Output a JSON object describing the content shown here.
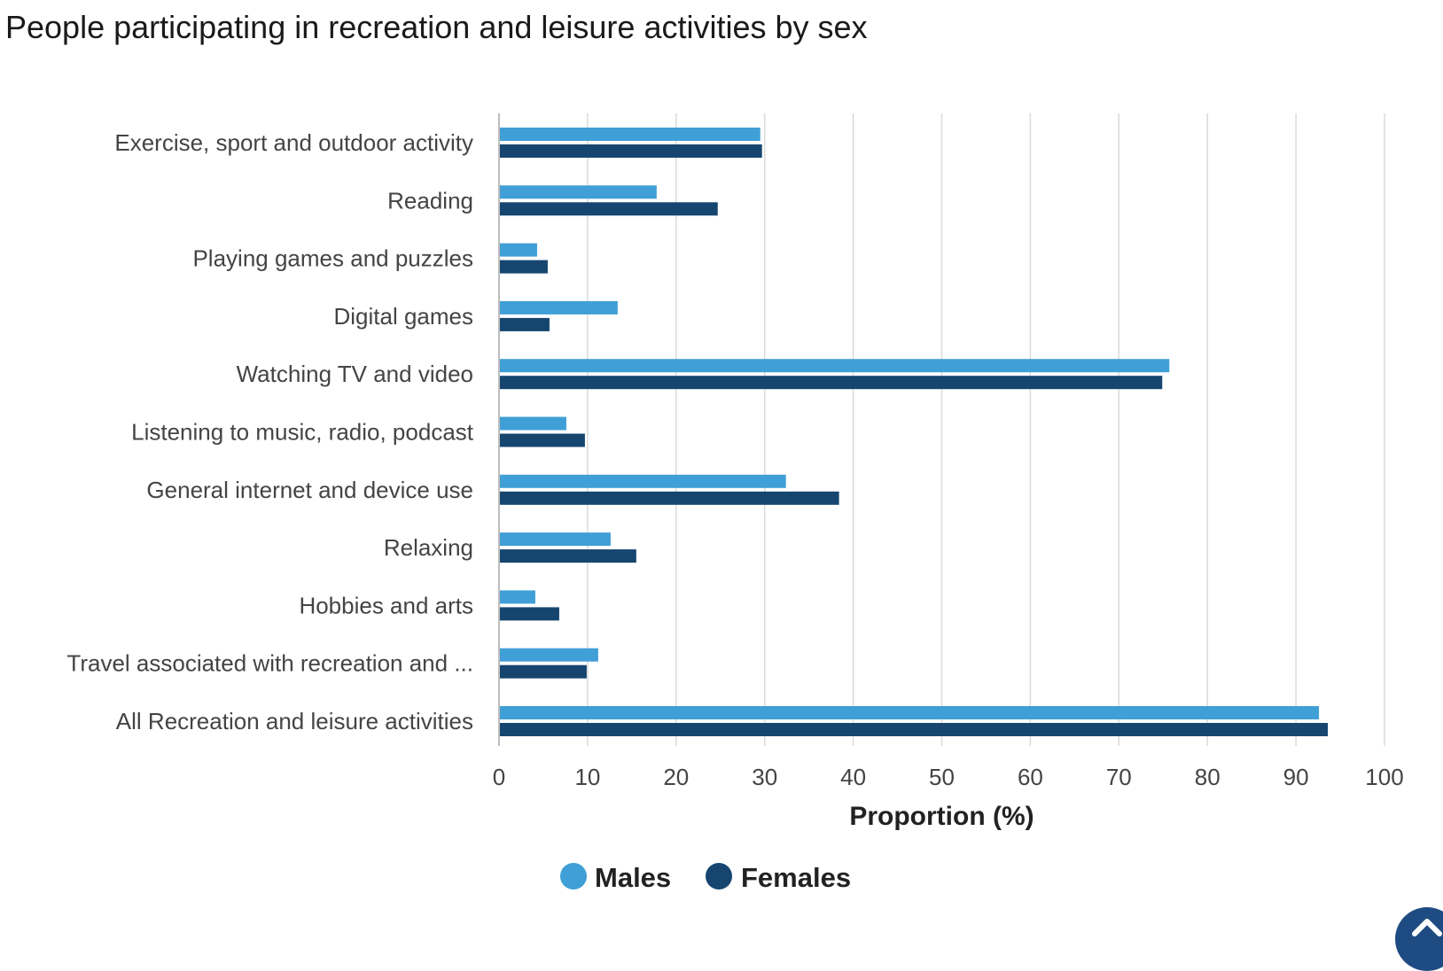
{
  "page": {
    "title": "People participating in recreation and leisure activities by sex"
  },
  "colors": {
    "males": "#3f9fd6",
    "females": "#164670",
    "grid": "#dadada",
    "axis": "#bdbdbd",
    "scroll_button": "#1e4c82"
  },
  "icons": {
    "legend_marker": "circle",
    "scroll_button": "chevron-up-icon"
  },
  "chart_data": {
    "type": "bar",
    "orientation": "horizontal",
    "title": "People participating in recreation and leisure activities by sex",
    "xlabel": "Proportion (%)",
    "ylabel": "",
    "categories": [
      "Exercise, sport and outdoor activity",
      "Reading",
      "Playing games and puzzles",
      "Digital games",
      "Watching TV and video",
      "Listening to music, radio, podcast",
      "General internet and device use",
      "Relaxing",
      "Hobbies and arts",
      "Travel associated with recreation and ...",
      "All Recreation and leisure activities"
    ],
    "series": [
      {
        "name": "Males",
        "values": [
          29.5,
          17.8,
          4.3,
          13.4,
          75.7,
          7.6,
          32.4,
          12.6,
          4.1,
          11.2,
          92.6
        ]
      },
      {
        "name": "Females",
        "values": [
          29.7,
          24.7,
          5.5,
          5.7,
          74.9,
          9.7,
          38.4,
          15.5,
          6.8,
          9.9,
          93.6
        ]
      }
    ],
    "xlim": [
      0,
      100
    ],
    "xticks": [
      0,
      10,
      20,
      30,
      40,
      50,
      60,
      70,
      80,
      90,
      100
    ],
    "grid": "vertical",
    "legend": "bottom-center"
  }
}
